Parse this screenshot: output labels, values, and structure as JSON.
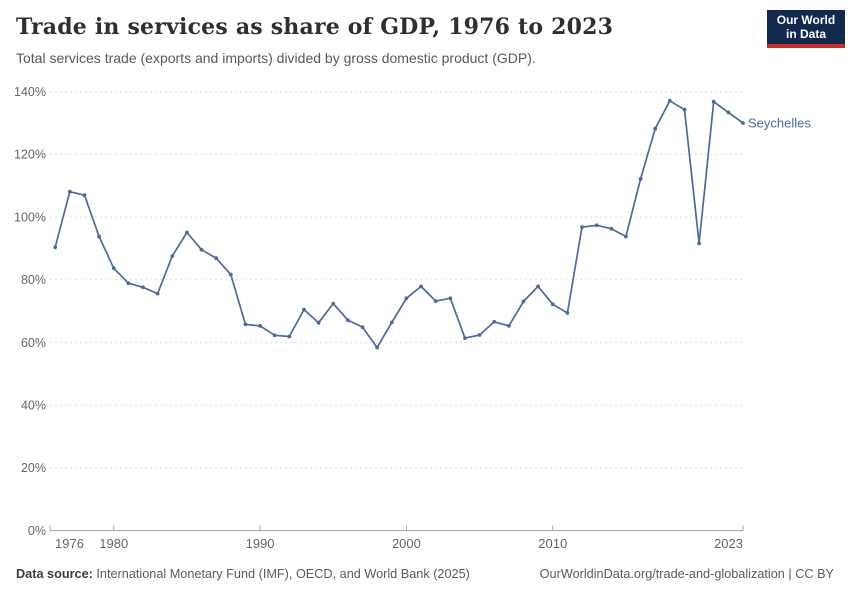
{
  "header": {
    "title": "Trade in services as share of GDP, 1976 to 2023",
    "subtitle": "Total services trade (exports and imports) divided by gross domestic product (GDP).",
    "logo": {
      "line1": "Our World",
      "line2": "in Data"
    }
  },
  "colors": {
    "line": "#4C6A9C",
    "entity_label": "#4C6A9C",
    "grid": "#DCDCDC",
    "axis": "#A3A3A3",
    "tick_text": "#666666",
    "logo_bg": "#12294E",
    "logo_accent": "#CE2A27"
  },
  "chart_data": {
    "type": "line",
    "title": "Trade in services as share of GDP, 1976 to 2023",
    "xlabel": "",
    "ylabel": "",
    "xlim": [
      1976,
      2023
    ],
    "ylim": [
      0,
      140
    ],
    "grid": "horizontal-dashed",
    "legend_position": "end-of-line-label",
    "entity_label": "Seychelles",
    "x": [
      1976,
      1977,
      1978,
      1979,
      1980,
      1981,
      1982,
      1983,
      1984,
      1985,
      1986,
      1987,
      1988,
      1989,
      1990,
      1991,
      1992,
      1993,
      1994,
      1995,
      1996,
      1997,
      1998,
      1999,
      2000,
      2001,
      2002,
      2003,
      2004,
      2005,
      2006,
      2007,
      2008,
      2009,
      2010,
      2011,
      2012,
      2013,
      2014,
      2015,
      2016,
      2017,
      2018,
      2019,
      2020,
      2021,
      2022,
      2023
    ],
    "series": [
      {
        "name": "Seychelles",
        "values": [
          90.4,
          108.1,
          107.0,
          93.8,
          83.7,
          78.9,
          77.6,
          75.6,
          87.6,
          95.1,
          89.6,
          86.9,
          81.7,
          65.8,
          65.3,
          62.3,
          61.9,
          70.5,
          66.3,
          72.4,
          67.1,
          64.9,
          58.4,
          66.4,
          74.1,
          77.9,
          73.2,
          74.1,
          61.4,
          62.4,
          66.6,
          65.3,
          73.1,
          77.9,
          72.2,
          69.4,
          96.8,
          97.4,
          96.3,
          93.8,
          112.2,
          128.2,
          137.1,
          134.3,
          91.6,
          136.8,
          133.4,
          130.0
        ]
      }
    ],
    "y_ticks": [
      {
        "value": 0,
        "label": "0%"
      },
      {
        "value": 20,
        "label": "20%"
      },
      {
        "value": 40,
        "label": "40%"
      },
      {
        "value": 60,
        "label": "60%"
      },
      {
        "value": 80,
        "label": "80%"
      },
      {
        "value": 100,
        "label": "100%"
      },
      {
        "value": 120,
        "label": "120%"
      },
      {
        "value": 140,
        "label": "140%"
      }
    ],
    "x_ticks": [
      {
        "year": 1976,
        "label": "1976"
      },
      {
        "year": 1980,
        "label": "1980"
      },
      {
        "year": 1990,
        "label": "1990"
      },
      {
        "year": 2000,
        "label": "2000"
      },
      {
        "year": 2010,
        "label": "2010"
      },
      {
        "year": 2023,
        "label": "2023"
      }
    ]
  },
  "footer": {
    "source_label": "Data source:",
    "source_text": " International Monetary Fund (IMF), OECD, and World Bank (2025)",
    "credit_link": "OurWorldinData.org/trade-and-globalization",
    "credit_suffix": " | CC BY"
  }
}
